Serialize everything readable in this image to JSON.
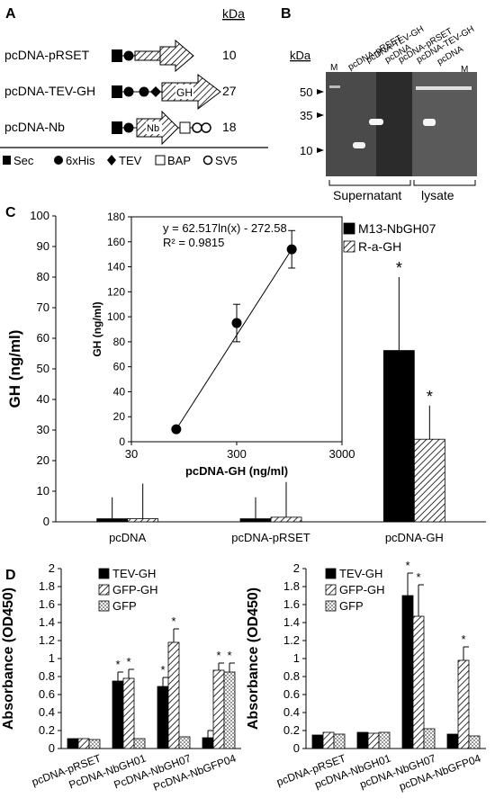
{
  "panel_letters": {
    "A": "A",
    "B": "B",
    "C": "C",
    "D": "D"
  },
  "panel_a": {
    "kda_header": "kDa",
    "constructs": [
      {
        "name": "pcDNA-pRSET",
        "kda": "10",
        "domain_label": ""
      },
      {
        "name": "pcDNA-TEV-GH",
        "kda": "27",
        "domain_label": "GH"
      },
      {
        "name": "pcDNA-Nb",
        "kda": "18",
        "domain_label": "Nb"
      }
    ],
    "legend": [
      {
        "symbol": "filled-square",
        "label": "Sec"
      },
      {
        "symbol": "filled-circle",
        "label": "6xHis"
      },
      {
        "symbol": "filled-diamond",
        "label": "TEV"
      },
      {
        "symbol": "open-square",
        "label": "BAP"
      },
      {
        "symbol": "open-circle",
        "label": "SV5"
      }
    ]
  },
  "panel_b": {
    "kda_label": "kDa",
    "markers": [
      "50",
      "35",
      "10"
    ],
    "lanes": [
      "M",
      "pcDNA-pRSET",
      "pcDNA-TEV-GH",
      "pcDNA",
      "pcDNA-pRSET",
      "pcDNA-TEV-GH",
      "pcDNA",
      "M"
    ],
    "groups": [
      "Supernatant",
      "lysate"
    ]
  },
  "chart_data": [
    {
      "id": "panel-c-main",
      "type": "bar",
      "ylabel": "GH (ng/ml)",
      "ylim": [
        0,
        100
      ],
      "yticks": [
        0,
        10,
        20,
        30,
        40,
        50,
        60,
        70,
        80,
        90,
        100
      ],
      "categories": [
        "pcDNA",
        "pcDNA-pRSET",
        "pcDNA-GH"
      ],
      "series": [
        {
          "name": "M13-NbGH07",
          "color": "#000000",
          "pattern": "solid",
          "values": [
            1,
            1,
            56
          ],
          "errors": [
            7,
            7,
            24
          ],
          "significant": [
            false,
            false,
            true
          ]
        },
        {
          "name": "R-a-GH",
          "color": "#ffffff",
          "pattern": "diagonal-hatch",
          "values": [
            1,
            1.5,
            27
          ],
          "errors": [
            11.5,
            11.5,
            11
          ],
          "significant": [
            false,
            false,
            true
          ]
        }
      ],
      "legend_position": "top-right",
      "significance_marker": "*"
    },
    {
      "id": "panel-c-inset",
      "type": "scatter",
      "xlabel": "pcDNA-GH  (ng/ml)",
      "ylabel": "GH (ng/ml)",
      "xscale": "log",
      "xlim": [
        30,
        3000
      ],
      "xticks": [
        "30",
        "300",
        "3000"
      ],
      "ylim": [
        0,
        180
      ],
      "yticks": [
        0,
        20,
        40,
        60,
        80,
        100,
        120,
        140,
        160,
        180
      ],
      "points": [
        {
          "x": 80,
          "y": 10,
          "err": 0
        },
        {
          "x": 300,
          "y": 95,
          "err": 15
        },
        {
          "x": 1000,
          "y": 154,
          "err": 15
        }
      ],
      "trendline": "log",
      "equation": "y = 62.517ln(x)  - 272.58",
      "r_squared": "R² = 0.9815"
    },
    {
      "id": "panel-d-left",
      "type": "bar",
      "ylabel": "Absorbance (OD450)",
      "ylim": [
        0,
        2
      ],
      "yticks": [
        "0",
        "0.2",
        "0.4",
        "0.6",
        "0.8",
        "1",
        "1.2",
        "1.4",
        "1.6",
        "1.8",
        "2"
      ],
      "categories": [
        "pcDNA-pRSET",
        "PcDNA-NbGH01",
        "PcDNA-NbGH07",
        "PcDNA-NbGFP04"
      ],
      "series": [
        {
          "name": "TEV-GH",
          "color": "#000000",
          "pattern": "solid",
          "values": [
            0.11,
            0.75,
            0.69,
            0.12
          ],
          "errors": [
            0,
            0.1,
            0.1,
            0.08
          ],
          "significant": [
            false,
            true,
            true,
            false
          ]
        },
        {
          "name": "GFP-GH",
          "color": "#ffffff",
          "pattern": "diagonal-hatch",
          "values": [
            0.11,
            0.78,
            1.18,
            0.87
          ],
          "errors": [
            0,
            0.1,
            0.15,
            0.08
          ],
          "significant": [
            false,
            true,
            true,
            true
          ]
        },
        {
          "name": "GFP",
          "color": "#ffffff",
          "pattern": "checker",
          "values": [
            0.1,
            0.11,
            0.13,
            0.85
          ],
          "errors": [
            0,
            0,
            0,
            0.1
          ],
          "significant": [
            false,
            false,
            false,
            true
          ]
        }
      ],
      "legend_position": "top-left",
      "significance_marker": "*"
    },
    {
      "id": "panel-d-right",
      "type": "bar",
      "ylabel": "Absorbance (OD450)",
      "ylim": [
        0,
        2
      ],
      "yticks": [
        "0",
        "0.2",
        "0.4",
        "0.6",
        "0.8",
        "1",
        "1.2",
        "1.4",
        "1.6",
        "1.8",
        "2"
      ],
      "categories": [
        "pcDNA-pRSET",
        "pcDNA-NbGH01",
        "pcDNA-NbGH07",
        "pcDNA-NbGFP04"
      ],
      "series": [
        {
          "name": "TEV-GH",
          "color": "#000000",
          "pattern": "solid",
          "values": [
            0.15,
            0.18,
            1.7,
            0.16
          ],
          "errors": [
            0,
            0,
            0.25,
            0
          ],
          "significant": [
            false,
            false,
            true,
            false
          ]
        },
        {
          "name": "GFP-GH",
          "color": "#ffffff",
          "pattern": "diagonal-hatch",
          "values": [
            0.18,
            0.17,
            1.47,
            0.98
          ],
          "errors": [
            0,
            0,
            0.35,
            0.15
          ],
          "significant": [
            false,
            false,
            true,
            true
          ]
        },
        {
          "name": "GFP",
          "color": "#ffffff",
          "pattern": "checker",
          "values": [
            0.16,
            0.18,
            0.22,
            0.14
          ],
          "errors": [
            0,
            0,
            0,
            0
          ],
          "significant": [
            false,
            false,
            false,
            false
          ]
        }
      ],
      "legend_position": "top-left",
      "significance_marker": "*"
    }
  ]
}
